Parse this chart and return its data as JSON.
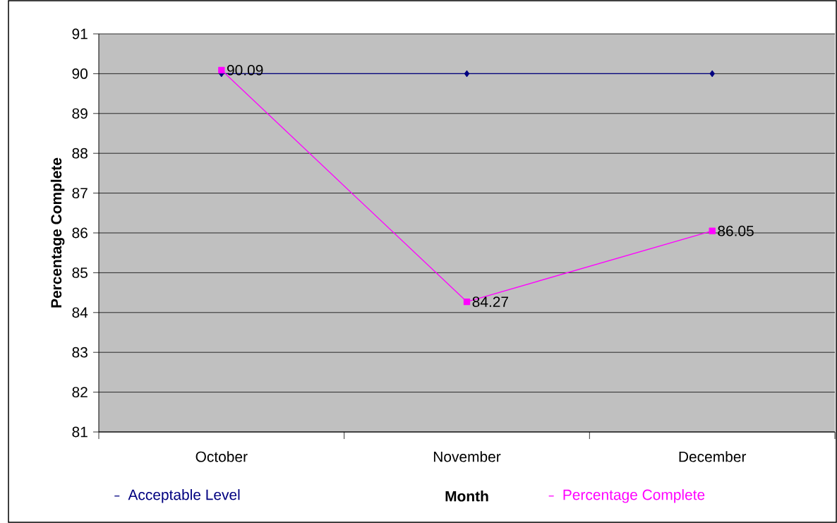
{
  "chart_data": {
    "type": "line",
    "xlabel": "Month",
    "ylabel": "Percentage Complete",
    "categories": [
      "October",
      "November",
      "December"
    ],
    "ylim": [
      81,
      91
    ],
    "yticks": [
      81,
      82,
      83,
      84,
      85,
      86,
      87,
      88,
      89,
      90,
      91
    ],
    "grid": "y",
    "legend": "bottom",
    "series": [
      {
        "name": "Acceptable Level",
        "color": "#000080",
        "marker": "diamond",
        "line_style": "solid",
        "values": [
          90,
          90,
          90
        ]
      },
      {
        "name": "Percentage Complete",
        "color": "#ff00ff",
        "marker": "square",
        "line_style": "solid",
        "values": [
          90.09,
          84.27,
          86.05
        ],
        "value_labels": [
          "90.09",
          "84.27",
          "86.05"
        ]
      }
    ]
  }
}
